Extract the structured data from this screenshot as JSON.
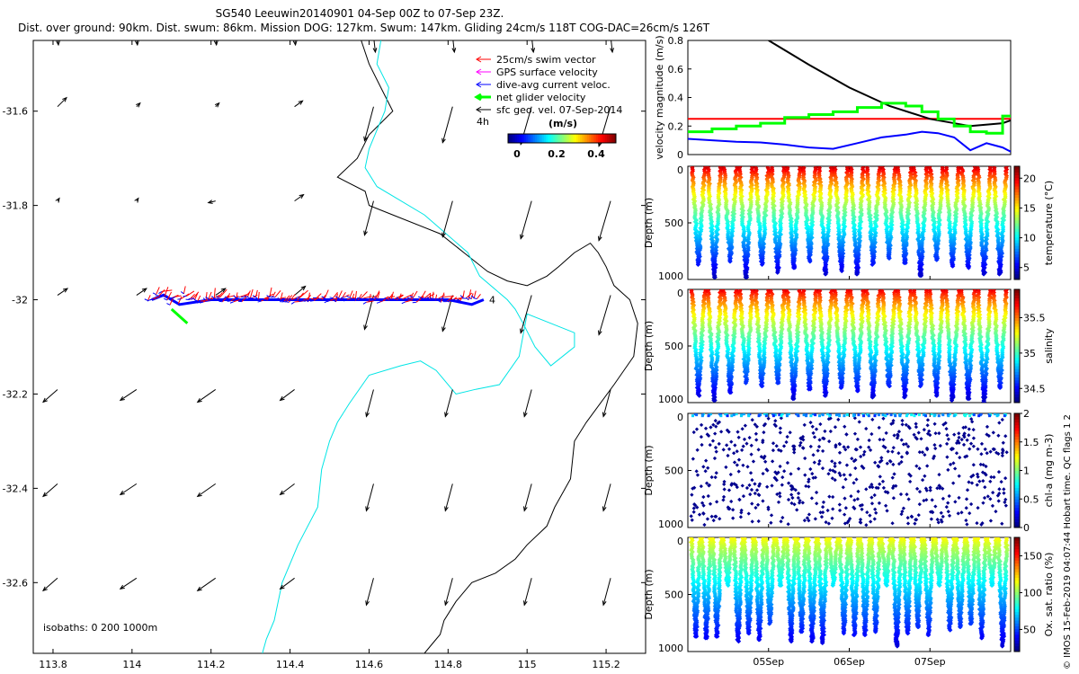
{
  "header": {
    "title_line1": "SG540 Leeuwin20140901 04-Sep 00Z to 07-Sep 23Z.",
    "title_line2": "Dist. over ground: 90km. Dist. swum: 86km. Mission DOG: 127km. Swum: 147km. Gliding 24cm/s 118T COG-DAC=26cm/s 126T"
  },
  "footer_note": "© IMOS 15-Feb-2019 04:07:44 Hobart time. QC flags 1  2",
  "chart_data": [
    {
      "type": "scatter",
      "name": "map",
      "xlim": [
        113.75,
        115.3
      ],
      "ylim": [
        -32.75,
        -31.45
      ],
      "x_ticks": [
        113.8,
        114,
        114.2,
        114.4,
        114.6,
        114.8,
        115,
        115.2
      ],
      "x_tick_labels": [
        "113.8",
        "114",
        "114.2",
        "114.4",
        "114.6",
        "114.8",
        "115",
        "115.2"
      ],
      "y_ticks": [
        -31.6,
        -31.8,
        -32,
        -32.2,
        -32.4,
        -32.6
      ],
      "y_tick_labels": [
        "-31.6",
        "-31.8",
        "-32",
        "-32.2",
        "-32.4",
        "-32.6"
      ],
      "legend": [
        {
          "label": "25cm/s swim vector",
          "color": "#ff0000"
        },
        {
          "label": "GPS surface velocity",
          "color": "#ff00ff"
        },
        {
          "label": "dive-avg current veloc.",
          "color": "#0000ff"
        },
        {
          "label": "net glider velocity",
          "color": "#00ff00"
        },
        {
          "label": "sfc geo. vel. 07-Sep-2014",
          "color": "#000000"
        }
      ],
      "legend_extra": "4h",
      "colorbar": {
        "label": "(m/s)",
        "ticks": [
          "0",
          "0.2",
          "0.4"
        ]
      },
      "isobath_label": "isobaths: 0   200  1000m",
      "track_end_label": "4",
      "track": {
        "x": [
          114.05,
          114.08,
          114.12,
          114.2,
          114.3,
          114.4,
          114.5,
          114.6,
          114.7,
          114.8,
          114.86,
          114.89
        ],
        "y": [
          -32.0,
          -31.99,
          -32.01,
          -32.0,
          -32.0,
          -32.0,
          -32.0,
          -32.0,
          -32.0,
          -32.0,
          -32.01,
          -32.0
        ]
      },
      "isobath_0m": {
        "color": "#000000",
        "x": [
          114.58,
          114.6,
          114.63,
          114.66,
          114.6,
          114.57,
          114.52,
          114.59,
          114.6,
          114.66,
          114.78,
          114.84,
          114.9,
          114.95,
          115.0,
          115.05,
          115.08,
          115.12,
          115.16,
          115.18,
          115.2,
          115.22,
          115.26,
          115.28,
          115.27,
          115.22,
          115.15,
          115.12,
          115.11,
          115.07,
          115.05,
          115.0,
          114.97,
          114.92,
          114.86,
          114.82,
          114.79,
          114.78,
          114.76,
          114.74
        ],
        "y": [
          -31.45,
          -31.5,
          -31.55,
          -31.6,
          -31.65,
          -31.7,
          -31.74,
          -31.77,
          -31.8,
          -31.82,
          -31.86,
          -31.9,
          -31.94,
          -31.96,
          -31.97,
          -31.95,
          -31.93,
          -31.9,
          -31.88,
          -31.9,
          -31.93,
          -31.97,
          -32.0,
          -32.05,
          -32.12,
          -32.18,
          -32.26,
          -32.3,
          -32.38,
          -32.44,
          -32.48,
          -32.52,
          -32.55,
          -32.58,
          -32.6,
          -32.64,
          -32.68,
          -32.71,
          -32.73,
          -32.75
        ]
      },
      "isobath_200m": {
        "color": "#00e5e5",
        "x": [
          114.63,
          114.62,
          114.65,
          114.64,
          114.62,
          114.6,
          114.59,
          114.62,
          114.74,
          114.85,
          114.88,
          114.95,
          114.97,
          114.99,
          115.02,
          115.06,
          115.12,
          115.12,
          115.0,
          114.98,
          114.93,
          114.87,
          114.82,
          114.79,
          114.77,
          114.73,
          114.68,
          114.6,
          114.55,
          114.52,
          114.5,
          114.48,
          114.47,
          114.42,
          114.4,
          114.38,
          114.36,
          114.34,
          114.33
        ],
        "y": [
          -31.45,
          -31.5,
          -31.55,
          -31.6,
          -31.64,
          -31.68,
          -31.72,
          -31.76,
          -31.82,
          -31.9,
          -31.95,
          -32.0,
          -32.02,
          -32.05,
          -32.1,
          -32.14,
          -32.1,
          -32.07,
          -32.03,
          -32.12,
          -32.18,
          -32.19,
          -32.2,
          -32.17,
          -32.15,
          -32.13,
          -32.14,
          -32.16,
          -32.22,
          -32.26,
          -32.3,
          -32.36,
          -32.44,
          -32.52,
          -32.56,
          -32.6,
          -32.68,
          -32.72,
          -32.75
        ]
      }
    },
    {
      "type": "line",
      "name": "velocity",
      "ylabel": "velocity magnitude (m/s)",
      "xlim": [
        4.0,
        8.0
      ],
      "ylim": [
        0,
        0.8
      ],
      "y_ticks": [
        "0",
        "0.2",
        "0.4",
        "0.6",
        "0.8"
      ],
      "series": [
        {
          "color": "#ff0000",
          "x": [
            4.0,
            8.0
          ],
          "y": [
            0.25,
            0.25
          ]
        },
        {
          "color": "#000000",
          "x": [
            5.0,
            5.5,
            6.0,
            6.5,
            7.0,
            7.5,
            7.9,
            8.0
          ],
          "y": [
            0.8,
            0.63,
            0.47,
            0.34,
            0.25,
            0.2,
            0.22,
            0.24
          ]
        },
        {
          "color": "#00ff00",
          "x": [
            4.0,
            4.3,
            4.6,
            4.9,
            5.2,
            5.5,
            5.8,
            6.1,
            6.4,
            6.7,
            6.9,
            7.1,
            7.3,
            7.5,
            7.7,
            7.9,
            8.0
          ],
          "y": [
            0.16,
            0.18,
            0.2,
            0.22,
            0.26,
            0.28,
            0.3,
            0.33,
            0.36,
            0.34,
            0.3,
            0.25,
            0.2,
            0.16,
            0.15,
            0.27,
            0.24
          ]
        },
        {
          "color": "#0000ff",
          "x": [
            4.0,
            4.3,
            4.6,
            4.9,
            5.2,
            5.5,
            5.8,
            6.1,
            6.4,
            6.7,
            6.9,
            7.1,
            7.3,
            7.5,
            7.7,
            7.9,
            8.0
          ],
          "y": [
            0.11,
            0.1,
            0.09,
            0.085,
            0.07,
            0.05,
            0.04,
            0.08,
            0.12,
            0.14,
            0.16,
            0.15,
            0.12,
            0.03,
            0.08,
            0.05,
            0.02
          ]
        }
      ]
    },
    {
      "type": "scatter",
      "name": "temperature",
      "ylabel": "Depth (m)",
      "colorbar_label": "temperature (°C)",
      "colorbar_ticks": [
        "5",
        "10",
        "15",
        "20"
      ],
      "clim": [
        3,
        22
      ],
      "ylim": [
        0,
        1000
      ],
      "y_ticks": [
        "0",
        "500",
        "1000"
      ],
      "profile_count": 20,
      "surface_value": 21.5,
      "deep_value": 4
    },
    {
      "type": "scatter",
      "name": "salinity",
      "ylabel": "Depth (m)",
      "colorbar_label": "salinity",
      "colorbar_ticks": [
        "34.5",
        "35",
        "35.5"
      ],
      "clim": [
        34.3,
        35.9
      ],
      "ylim": [
        0,
        1000
      ],
      "y_ticks": [
        "0",
        "500",
        "1000"
      ],
      "profile_count": 20,
      "surface_value": 35.8,
      "deep_value": 34.4
    },
    {
      "type": "scatter",
      "name": "chl",
      "ylabel": "Depth (m)",
      "colorbar_label": "chl-a (mg m-3)",
      "colorbar_ticks": [
        "0",
        "0.5",
        "1",
        "1.5",
        "2"
      ],
      "clim": [
        0,
        2
      ],
      "ylim": [
        0,
        1000
      ],
      "y_ticks": [
        "0",
        "500",
        "1000"
      ],
      "profile_count": 40
    },
    {
      "type": "scatter",
      "name": "oxygen",
      "ylabel": "Depth (m)",
      "colorbar_label": "Ox. sat. ratio (%)",
      "colorbar_ticks": [
        "50",
        "100",
        "150"
      ],
      "clim": [
        20,
        175
      ],
      "ylim": [
        0,
        1000
      ],
      "y_ticks": [
        "0",
        "500",
        "1000"
      ],
      "x_ticks": [
        5.0,
        6.0,
        7.0
      ],
      "x_tick_labels": [
        "05Sep",
        "06Sep",
        "07Sep"
      ],
      "profile_count": 30
    }
  ]
}
